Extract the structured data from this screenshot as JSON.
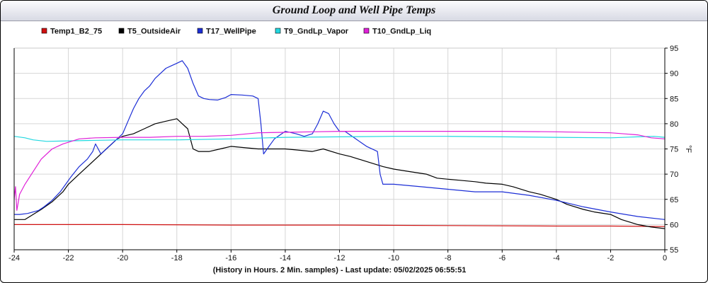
{
  "window": {
    "title": "Ground Loop and Well Pipe Temps"
  },
  "chart_data": {
    "type": "line",
    "title": "Ground Loop and Well Pipe Temps",
    "xlabel": "(History in Hours. 2 Min. samples) - Last update: 05/02/2025 06:55:51",
    "ylabel": "°F",
    "xlim": [
      -24,
      0
    ],
    "ylim": [
      55,
      95
    ],
    "x_ticks": [
      -24,
      -22,
      -20,
      -18,
      -16,
      -14,
      -12,
      -10,
      -8,
      -6,
      -4,
      -2,
      0
    ],
    "y_ticks": [
      55,
      60,
      65,
      70,
      75,
      80,
      85,
      90,
      95
    ],
    "grid": true,
    "legend_position": "top",
    "series": [
      {
        "name": "Temp1_B2_75",
        "color": "#d01010",
        "points": [
          [
            -24,
            60.0
          ],
          [
            -20,
            60.0
          ],
          [
            -16,
            59.9
          ],
          [
            -12,
            59.9
          ],
          [
            -8,
            59.8
          ],
          [
            -4,
            59.7
          ],
          [
            -2,
            59.7
          ],
          [
            0,
            59.6
          ]
        ]
      },
      {
        "name": "T5_OutsideAir",
        "color": "#000000",
        "points": [
          [
            -24,
            61.0
          ],
          [
            -23.6,
            61.0
          ],
          [
            -23.3,
            62.0
          ],
          [
            -23.0,
            63.0
          ],
          [
            -22.6,
            64.5
          ],
          [
            -22.2,
            66.5
          ],
          [
            -22.0,
            68.0
          ],
          [
            -21.6,
            70.0
          ],
          [
            -21.2,
            72.0
          ],
          [
            -21.0,
            73.0
          ],
          [
            -20.6,
            75.0
          ],
          [
            -20.2,
            77.0
          ],
          [
            -20.0,
            77.5
          ],
          [
            -19.6,
            78.0
          ],
          [
            -19.2,
            79.0
          ],
          [
            -18.8,
            80.0
          ],
          [
            -18.4,
            80.5
          ],
          [
            -18.0,
            81.0
          ],
          [
            -17.8,
            80.0
          ],
          [
            -17.6,
            79.0
          ],
          [
            -17.5,
            77.0
          ],
          [
            -17.4,
            75.0
          ],
          [
            -17.2,
            74.5
          ],
          [
            -16.8,
            74.5
          ],
          [
            -16.4,
            75.0
          ],
          [
            -16.0,
            75.5
          ],
          [
            -15.6,
            75.3
          ],
          [
            -15.0,
            75.0
          ],
          [
            -14.6,
            75.0
          ],
          [
            -14.0,
            75.0
          ],
          [
            -13.6,
            74.8
          ],
          [
            -13.0,
            74.5
          ],
          [
            -12.6,
            75.0
          ],
          [
            -12.0,
            74.0
          ],
          [
            -11.6,
            73.5
          ],
          [
            -11.0,
            72.5
          ],
          [
            -10.4,
            71.5
          ],
          [
            -10.0,
            71.0
          ],
          [
            -9.4,
            70.5
          ],
          [
            -8.8,
            70.0
          ],
          [
            -8.4,
            69.2
          ],
          [
            -8.0,
            69.0
          ],
          [
            -7.6,
            68.8
          ],
          [
            -7.0,
            68.5
          ],
          [
            -6.6,
            68.2
          ],
          [
            -6.0,
            68.0
          ],
          [
            -5.6,
            67.5
          ],
          [
            -5.0,
            66.5
          ],
          [
            -4.6,
            66.0
          ],
          [
            -4.0,
            65.0
          ],
          [
            -3.6,
            64.0
          ],
          [
            -3.0,
            63.0
          ],
          [
            -2.6,
            62.5
          ],
          [
            -2.0,
            62.0
          ],
          [
            -1.6,
            61.0
          ],
          [
            -1.0,
            60.0
          ],
          [
            -0.5,
            59.5
          ],
          [
            0,
            59.2
          ]
        ]
      },
      {
        "name": "T17_WellPipe",
        "color": "#1c2ed6",
        "points": [
          [
            -24,
            62.0
          ],
          [
            -23.8,
            62.0
          ],
          [
            -23.5,
            62.2
          ],
          [
            -23.1,
            62.8
          ],
          [
            -22.9,
            63.5
          ],
          [
            -22.6,
            64.8
          ],
          [
            -22.3,
            66.5
          ],
          [
            -22.1,
            68.0
          ],
          [
            -21.9,
            69.5
          ],
          [
            -21.6,
            71.5
          ],
          [
            -21.3,
            73.0
          ],
          [
            -21.1,
            74.5
          ],
          [
            -21.0,
            76.0
          ],
          [
            -20.8,
            74.0
          ],
          [
            -20.6,
            75.0
          ],
          [
            -20.2,
            77.0
          ],
          [
            -20.0,
            78.0
          ],
          [
            -19.8,
            80.5
          ],
          [
            -19.6,
            83.0
          ],
          [
            -19.4,
            85.0
          ],
          [
            -19.2,
            86.5
          ],
          [
            -19.0,
            87.5
          ],
          [
            -18.8,
            89.0
          ],
          [
            -18.6,
            90.0
          ],
          [
            -18.4,
            91.0
          ],
          [
            -18.2,
            91.5
          ],
          [
            -18.0,
            92.0
          ],
          [
            -17.8,
            92.5
          ],
          [
            -17.6,
            91.0
          ],
          [
            -17.4,
            88.0
          ],
          [
            -17.2,
            85.5
          ],
          [
            -17.0,
            85.0
          ],
          [
            -16.8,
            84.8
          ],
          [
            -16.5,
            84.7
          ],
          [
            -16.2,
            85.2
          ],
          [
            -16.0,
            85.8
          ],
          [
            -15.6,
            85.7
          ],
          [
            -15.2,
            85.5
          ],
          [
            -15.0,
            85.0
          ],
          [
            -14.9,
            80.0
          ],
          [
            -14.8,
            74.0
          ],
          [
            -14.6,
            75.5
          ],
          [
            -14.4,
            77.0
          ],
          [
            -14.0,
            78.5
          ],
          [
            -13.6,
            78.0
          ],
          [
            -13.3,
            77.5
          ],
          [
            -13.0,
            78.0
          ],
          [
            -12.8,
            80.0
          ],
          [
            -12.6,
            82.5
          ],
          [
            -12.4,
            82.0
          ],
          [
            -12.2,
            80.0
          ],
          [
            -12.0,
            78.5
          ],
          [
            -11.8,
            78.5
          ],
          [
            -11.4,
            77.0
          ],
          [
            -11.0,
            75.5
          ],
          [
            -10.6,
            74.5
          ],
          [
            -10.5,
            70.0
          ],
          [
            -10.4,
            68.0
          ],
          [
            -10.0,
            68.0
          ],
          [
            -9.0,
            67.5
          ],
          [
            -8.0,
            67.0
          ],
          [
            -7.0,
            66.5
          ],
          [
            -6.0,
            66.5
          ],
          [
            -5.0,
            65.8
          ],
          [
            -4.0,
            64.8
          ],
          [
            -3.0,
            63.5
          ],
          [
            -2.0,
            62.5
          ],
          [
            -1.0,
            61.6
          ],
          [
            0,
            61.0
          ]
        ]
      },
      {
        "name": "T9_GndLp_Vapor",
        "color": "#22d8e0",
        "points": [
          [
            -24,
            77.5
          ],
          [
            -23.6,
            77.2
          ],
          [
            -23.3,
            76.8
          ],
          [
            -22.8,
            76.5
          ],
          [
            -22.0,
            76.6
          ],
          [
            -20.0,
            76.8
          ],
          [
            -18.0,
            76.8
          ],
          [
            -16.0,
            77.0
          ],
          [
            -14.0,
            77.3
          ],
          [
            -12.0,
            77.4
          ],
          [
            -10.0,
            77.5
          ],
          [
            -8.0,
            77.5
          ],
          [
            -6.0,
            77.4
          ],
          [
            -4.0,
            77.3
          ],
          [
            -2.0,
            77.2
          ],
          [
            -1.0,
            77.4
          ],
          [
            -0.4,
            77.5
          ],
          [
            0,
            77.3
          ]
        ]
      },
      {
        "name": "T10_GndLp_Liq",
        "color": "#e020d8",
        "points": [
          [
            -24,
            65.0
          ],
          [
            -23.95,
            67.5
          ],
          [
            -23.9,
            62.8
          ],
          [
            -23.8,
            66.0
          ],
          [
            -23.6,
            68.0
          ],
          [
            -23.3,
            70.5
          ],
          [
            -23.0,
            73.0
          ],
          [
            -22.6,
            75.0
          ],
          [
            -22.2,
            76.0
          ],
          [
            -21.6,
            77.0
          ],
          [
            -21.0,
            77.2
          ],
          [
            -20.0,
            77.3
          ],
          [
            -19.0,
            77.3
          ],
          [
            -18.0,
            77.5
          ],
          [
            -17.0,
            77.5
          ],
          [
            -16.0,
            77.7
          ],
          [
            -15.0,
            78.2
          ],
          [
            -14.0,
            78.3
          ],
          [
            -13.0,
            78.4
          ],
          [
            -12.0,
            78.5
          ],
          [
            -10.0,
            78.5
          ],
          [
            -8.0,
            78.5
          ],
          [
            -6.0,
            78.5
          ],
          [
            -4.0,
            78.4
          ],
          [
            -2.0,
            78.2
          ],
          [
            -1.0,
            77.8
          ],
          [
            -0.5,
            77.2
          ],
          [
            0,
            77.0
          ]
        ]
      }
    ]
  }
}
